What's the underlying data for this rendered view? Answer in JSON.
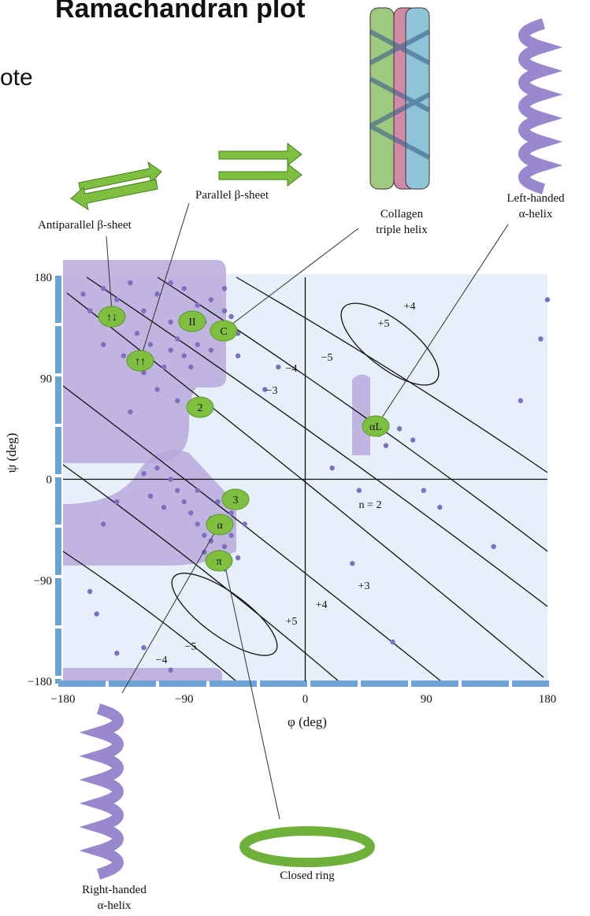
{
  "chart_data": {
    "type": "scatter",
    "title": "Ramachandran plot",
    "note": "ote",
    "x_label": "φ (deg)",
    "y_label": "ψ (deg)",
    "xlim": [
      -180,
      180
    ],
    "ylim": [
      -180,
      180
    ],
    "xticks": [
      {
        "value": -180,
        "label": "−180"
      },
      {
        "value": -90,
        "label": "−90"
      },
      0,
      90,
      180
    ],
    "yticks": [
      {
        "value": -180,
        "label": "−180"
      },
      {
        "value": -90,
        "label": "−90"
      },
      0,
      90,
      180
    ],
    "color": "#7d70c0",
    "x": [
      -150,
      -140,
      -130,
      -120,
      -110,
      -100,
      -90,
      -80,
      -70,
      -60,
      -145,
      -125,
      -115,
      -95,
      -85,
      -75,
      -65,
      -55,
      -160,
      -135,
      -105,
      -100,
      -90,
      -80,
      -70,
      -120,
      -110,
      -150,
      -165,
      -50,
      -60,
      -100,
      -85,
      -130,
      -95,
      -65,
      -60,
      -70,
      -75,
      -55,
      -80,
      -65,
      -60,
      -70,
      -85,
      -90,
      -95,
      -100,
      -110,
      -120,
      -55,
      -50,
      -75,
      -80,
      -105,
      -115,
      -140,
      -150,
      -60,
      -45,
      55,
      60,
      70,
      80,
      88,
      100,
      140,
      160,
      175,
      180,
      -160,
      -155,
      -140,
      -120,
      -100,
      20,
      -30,
      -20,
      -50,
      40,
      35,
      65
    ],
    "values": [
      170,
      160,
      175,
      150,
      165,
      140,
      170,
      155,
      160,
      150,
      140,
      130,
      120,
      125,
      135,
      140,
      130,
      145,
      150,
      110,
      100,
      115,
      110,
      120,
      115,
      95,
      80,
      120,
      165,
      130,
      170,
      175,
      100,
      60,
      70,
      -40,
      -45,
      -35,
      -50,
      -30,
      -40,
      -20,
      -60,
      -55,
      -30,
      -20,
      -10,
      0,
      10,
      5,
      -50,
      -70,
      -65,
      -10,
      -25,
      -15,
      -20,
      -40,
      -80,
      -40,
      40,
      30,
      45,
      35,
      -10,
      -25,
      -60,
      70,
      125,
      160,
      -100,
      -120,
      -155,
      -150,
      -170,
      10,
      80,
      100,
      110,
      -10,
      -75,
      -145
    ],
    "contour_labels": [
      "+4",
      "+5",
      "−5",
      "−4",
      "−3",
      "n = 2",
      "+3",
      "+4",
      "+5",
      "−5",
      "−4"
    ],
    "region_labels": [
      "↑↓",
      "II",
      "C",
      "↑↑",
      "2",
      "αL",
      "3",
      "α",
      "π"
    ],
    "callouts": {
      "antiparallel": "Antiparallel β-sheet",
      "parallel": "Parallel β-sheet",
      "collagen": [
        "Collagen",
        "triple helix"
      ],
      "left": [
        "Left-handed",
        "α-helix"
      ],
      "right": [
        "Right-handed",
        "α-helix"
      ],
      "ring": "Closed ring"
    }
  }
}
